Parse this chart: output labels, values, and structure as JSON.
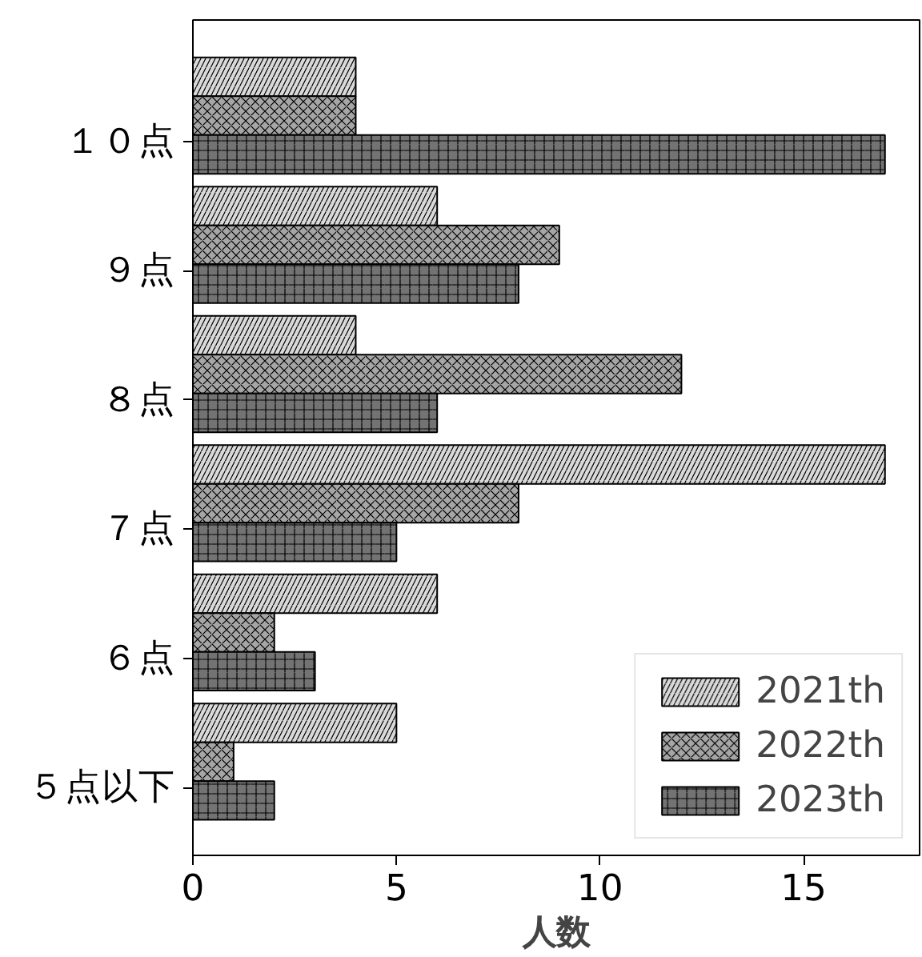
{
  "chart_data": {
    "type": "bar",
    "orientation": "horizontal",
    "xlabel": "人数",
    "categories": [
      "１０点",
      "９点",
      "８点",
      "７点",
      "６点",
      "５点以下"
    ],
    "series": [
      {
        "name": "2021th",
        "color": "#d9d9d9",
        "values": [
          4,
          6,
          4,
          17,
          6,
          5
        ]
      },
      {
        "name": "2022th",
        "color": "#a6a6a6",
        "values": [
          4,
          9,
          12,
          8,
          2,
          1
        ]
      },
      {
        "name": "2023th",
        "color": "#737373",
        "values": [
          17,
          8,
          6,
          5,
          3,
          2
        ]
      }
    ],
    "xlim": [
      0,
      17.85
    ],
    "xticks": [
      0,
      5,
      10,
      15
    ],
    "grid": false,
    "legend": "bottom right"
  }
}
